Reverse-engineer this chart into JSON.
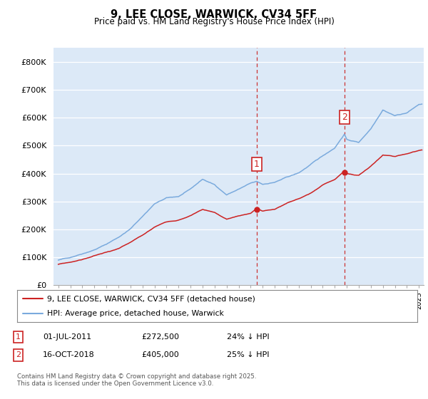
{
  "title": "9, LEE CLOSE, WARWICK, CV34 5FF",
  "subtitle": "Price paid vs. HM Land Registry's House Price Index (HPI)",
  "ylim": [
    0,
    850000
  ],
  "yticks": [
    0,
    100000,
    200000,
    300000,
    400000,
    500000,
    600000,
    700000,
    800000
  ],
  "ytick_labels": [
    "£0",
    "£100K",
    "£200K",
    "£300K",
    "£400K",
    "£500K",
    "£600K",
    "£700K",
    "£800K"
  ],
  "hpi_color": "#7aaadd",
  "price_color": "#cc2222",
  "plot_bg_color": "#dce9f7",
  "legend_label_price": "9, LEE CLOSE, WARWICK, CV34 5FF (detached house)",
  "legend_label_hpi": "HPI: Average price, detached house, Warwick",
  "marker1_year": 2011.5,
  "marker1_price": 272500,
  "marker2_year": 2018.8,
  "marker2_price": 405000,
  "footnote": "Contains HM Land Registry data © Crown copyright and database right 2025.\nThis data is licensed under the Open Government Licence v3.0.",
  "table_rows": [
    {
      "num": "1",
      "date": "01-JUL-2011",
      "price": "£272,500",
      "hpi": "24% ↓ HPI"
    },
    {
      "num": "2",
      "date": "16-OCT-2018",
      "price": "£405,000",
      "hpi": "25% ↓ HPI"
    }
  ]
}
